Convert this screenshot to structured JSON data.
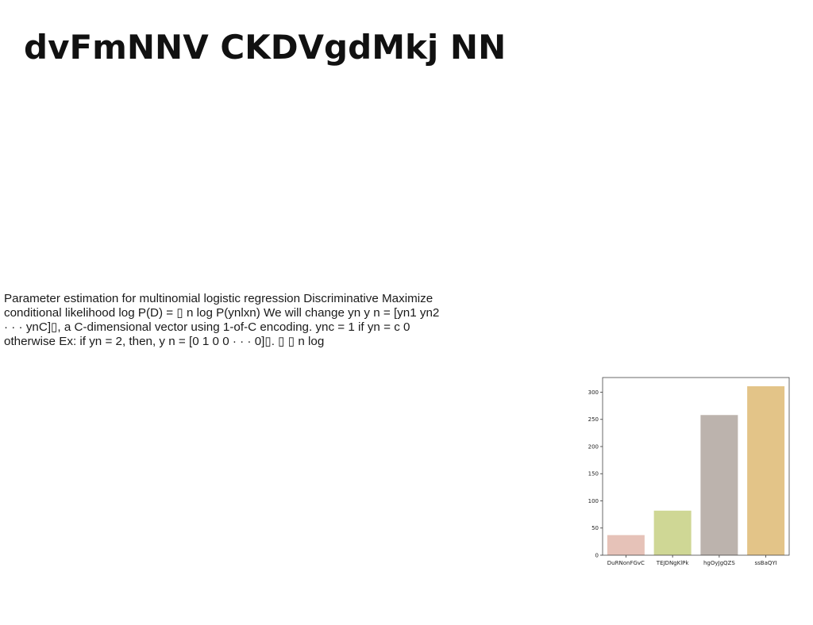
{
  "slide": {
    "title": "dvFmNNV CKDVgdMkj NN",
    "body": "Parameter estimation for multinomial logistic regression Discriminative Maximize conditional likelihood log P(D) = ▯ n log P(ynlxn) We will change yn y n = [yn1 yn2 · · · ynC]▯, a C-dimensional vector using 1-of-C encoding. ync = 1 if yn = c 0 otherwise Ex: if yn = 2, then, y n = [0 1 0 0 · · · 0]▯. ▯ ▯ n log"
  },
  "chart_data": {
    "type": "bar",
    "categories": [
      "DuRNonFGvC",
      "TEJDNgKlPk",
      "hgOyJgQZS",
      "ssBaQYI"
    ],
    "values": [
      37,
      82,
      258,
      311
    ],
    "colors": [
      "#e6c2b8",
      "#cfd795",
      "#bcb3ad",
      "#e3c488"
    ],
    "title": "",
    "xlabel": "",
    "ylabel": "",
    "ylim": [
      0,
      327
    ],
    "yticks": [
      0,
      50,
      100,
      150,
      200,
      250,
      300
    ],
    "grid": false,
    "legend": "none"
  }
}
